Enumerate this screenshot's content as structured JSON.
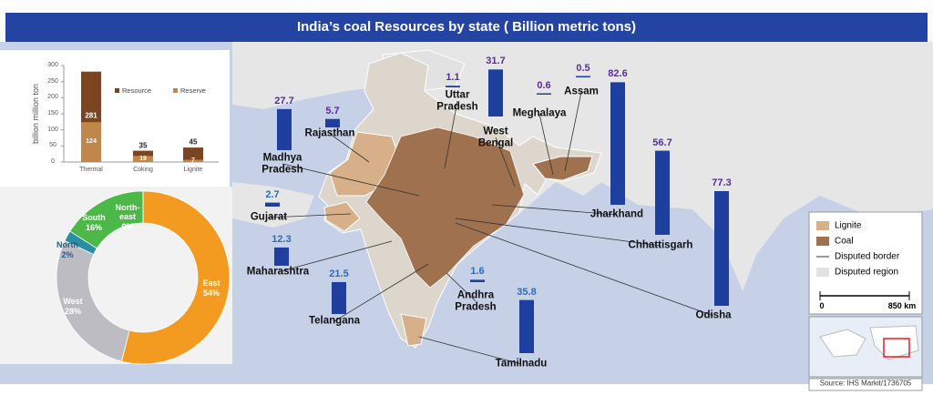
{
  "title": "India’s coal Resources by state ( Billion metric tons)",
  "map": {
    "bar_color": "#1f3f9f",
    "states": [
      {
        "name": "Madhya Pradesh",
        "value": 27.7,
        "label_color": "#5a2ca0"
      },
      {
        "name": "Rajasthan",
        "value": 5.7,
        "label_color": "#5a2ca0"
      },
      {
        "name": "Uttar Pradesh",
        "value": 1.1,
        "label_color": "#5a2ca0"
      },
      {
        "name": "West Bengal",
        "value": 31.7,
        "label_color": "#5a2ca0"
      },
      {
        "name": "Meghalaya",
        "value": 0.6,
        "label_color": "#5a2ca0"
      },
      {
        "name": "Assam",
        "value": 0.5,
        "label_color": "#5a2ca0"
      },
      {
        "name": "Jharkhand",
        "value": 82.6,
        "label_color": "#5a2ca0"
      },
      {
        "name": "Chhattisgarh",
        "value": 56.7,
        "label_color": "#5a2ca0"
      },
      {
        "name": "Odisha",
        "value": 77.3,
        "label_color": "#5a2ca0"
      },
      {
        "name": "Gujarat",
        "value": 2.7,
        "label_color": "#2a6db5"
      },
      {
        "name": "Maharashtra",
        "value": 12.3,
        "label_color": "#2a6db5"
      },
      {
        "name": "Telangana",
        "value": 21.5,
        "label_color": "#2a6db5"
      },
      {
        "name": "Andhra Pradesh",
        "value": 1.6,
        "label_color": "#2a6db5"
      },
      {
        "name": "Tamilnadu",
        "value": 35.8,
        "label_color": "#2a6db5"
      }
    ]
  },
  "legend": {
    "items": [
      {
        "label": "Lignite",
        "color": "#d7b089"
      },
      {
        "label": "Coal",
        "color": "#a0714e"
      },
      {
        "label": "Disputed border"
      },
      {
        "label": "Disputed region",
        "color": "#e2e2e2"
      }
    ]
  },
  "scale_bar": {
    "labels": [
      "0",
      "850 km"
    ]
  },
  "source": "Source: IHS Markit/1736705",
  "chart_data": [
    {
      "type": "bar",
      "ylabel": "billion million ton",
      "categories": [
        "Thermal",
        "Coking",
        "Lignite"
      ],
      "series": [
        {
          "name": "Resource",
          "color": "#7a4520",
          "values": [
            281,
            35,
            45
          ]
        },
        {
          "name": "Reserve",
          "color": "#c1874a",
          "values": [
            124,
            19,
            7
          ]
        }
      ],
      "ylim": [
        0,
        300
      ],
      "yticks": [
        0,
        50,
        100,
        150,
        200,
        250,
        300
      ]
    },
    {
      "type": "pie",
      "categories": [
        "East",
        "West",
        "North",
        "South",
        "North-east"
      ],
      "values": [
        54,
        28,
        2,
        16,
        0
      ],
      "value_labels": [
        "54%",
        "28%",
        "2%",
        "16%",
        "0%"
      ],
      "colors": [
        "#f39b20",
        "#bdbcc3",
        "#2a8fa5",
        "#4cb848",
        "#9fd07a"
      ]
    }
  ]
}
